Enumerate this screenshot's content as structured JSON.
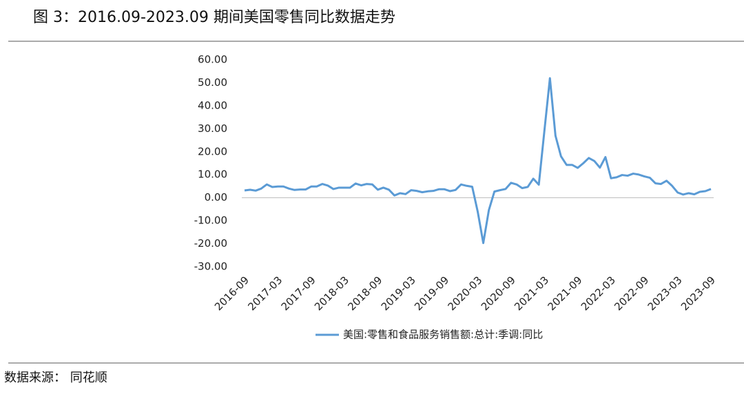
{
  "header": {
    "title": "图 3：2016.09-2023.09 期间美国零售同比数据走势"
  },
  "chart_data": {
    "type": "line",
    "categories": [
      "2016-09",
      null,
      null,
      null,
      null,
      null,
      "2017-03",
      null,
      null,
      null,
      null,
      null,
      "2017-09",
      null,
      null,
      null,
      null,
      null,
      "2018-03",
      null,
      null,
      null,
      null,
      null,
      "2018-09",
      null,
      null,
      null,
      null,
      null,
      "2019-03",
      null,
      null,
      null,
      null,
      null,
      "2019-09",
      null,
      null,
      null,
      null,
      null,
      "2020-03",
      null,
      null,
      null,
      null,
      null,
      "2020-09",
      null,
      null,
      null,
      null,
      null,
      "2021-03",
      null,
      null,
      null,
      null,
      null,
      "2021-09",
      null,
      null,
      null,
      null,
      null,
      "2022-03",
      null,
      null,
      null,
      null,
      null,
      "2022-09",
      null,
      null,
      null,
      null,
      null,
      "2023-03",
      null,
      null,
      null,
      null,
      null,
      "2023-09"
    ],
    "series": [
      {
        "name": "美国:零售和食品服务销售额:总计:季调:同比",
        "color": "#5b9bd5",
        "values": [
          3.2,
          3.5,
          3.1,
          4.0,
          5.8,
          4.7,
          4.9,
          4.9,
          4.0,
          3.4,
          3.6,
          3.6,
          4.9,
          4.9,
          6.0,
          5.3,
          3.8,
          4.4,
          4.4,
          4.4,
          6.2,
          5.4,
          6.0,
          5.8,
          3.5,
          4.4,
          3.5,
          1.0,
          2.0,
          1.6,
          3.3,
          3.0,
          2.4,
          2.8,
          3.0,
          3.7,
          3.7,
          2.9,
          3.4,
          5.8,
          5.2,
          4.8,
          -6.1,
          -19.7,
          -5.4,
          2.7,
          3.3,
          3.8,
          6.5,
          5.8,
          4.2,
          4.7,
          8.3,
          5.7,
          29.0,
          52.0,
          27.0,
          18.0,
          14.3,
          14.3,
          13.0,
          15.0,
          17.3,
          16.0,
          13.1,
          17.7,
          8.5,
          8.9,
          9.9,
          9.6,
          10.5,
          10.1,
          9.3,
          8.7,
          6.3,
          6.0,
          7.4,
          5.2,
          2.3,
          1.4,
          2.0,
          1.5,
          2.6,
          2.9,
          3.8
        ]
      }
    ],
    "ylim": [
      -30,
      60
    ],
    "yticks": [
      {
        "value": -30,
        "label": "-30.00"
      },
      {
        "value": -20,
        "label": "-20.00"
      },
      {
        "value": -10,
        "label": "-10.00"
      },
      {
        "value": 0,
        "label": "0.00"
      },
      {
        "value": 10,
        "label": "10.00"
      },
      {
        "value": 20,
        "label": "20.00"
      },
      {
        "value": 30,
        "label": "30.00"
      },
      {
        "value": 40,
        "label": "40.00"
      },
      {
        "value": 50,
        "label": "50.00"
      },
      {
        "value": 60,
        "label": "60.00"
      }
    ],
    "grid": false,
    "legend": "bottom"
  },
  "footer": {
    "source": "数据来源： 同花顺"
  }
}
